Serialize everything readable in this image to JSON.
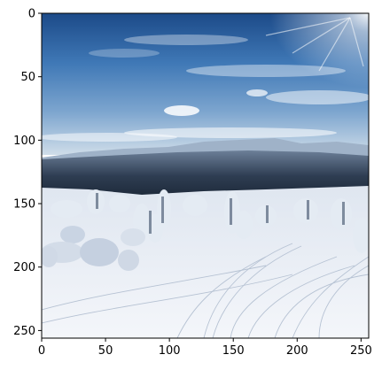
{
  "image_axes": {
    "x_ticks": [
      "0",
      "50",
      "100",
      "150",
      "200",
      "250"
    ],
    "y_ticks": [
      "0",
      "50",
      "100",
      "150",
      "200",
      "250"
    ],
    "x_tick_values": [
      0,
      50,
      100,
      150,
      200,
      250
    ],
    "y_tick_values": [
      0,
      50,
      100,
      150,
      200,
      250
    ],
    "x_range": [
      0,
      256
    ],
    "y_range": [
      0,
      256
    ],
    "colors": {
      "sky_top": "#1f4f8f",
      "sky_mid": "#4f86c2",
      "sky_horizon": "#c9dbea",
      "snow": "#e9eef5",
      "forest": "#1d2a3a"
    }
  }
}
